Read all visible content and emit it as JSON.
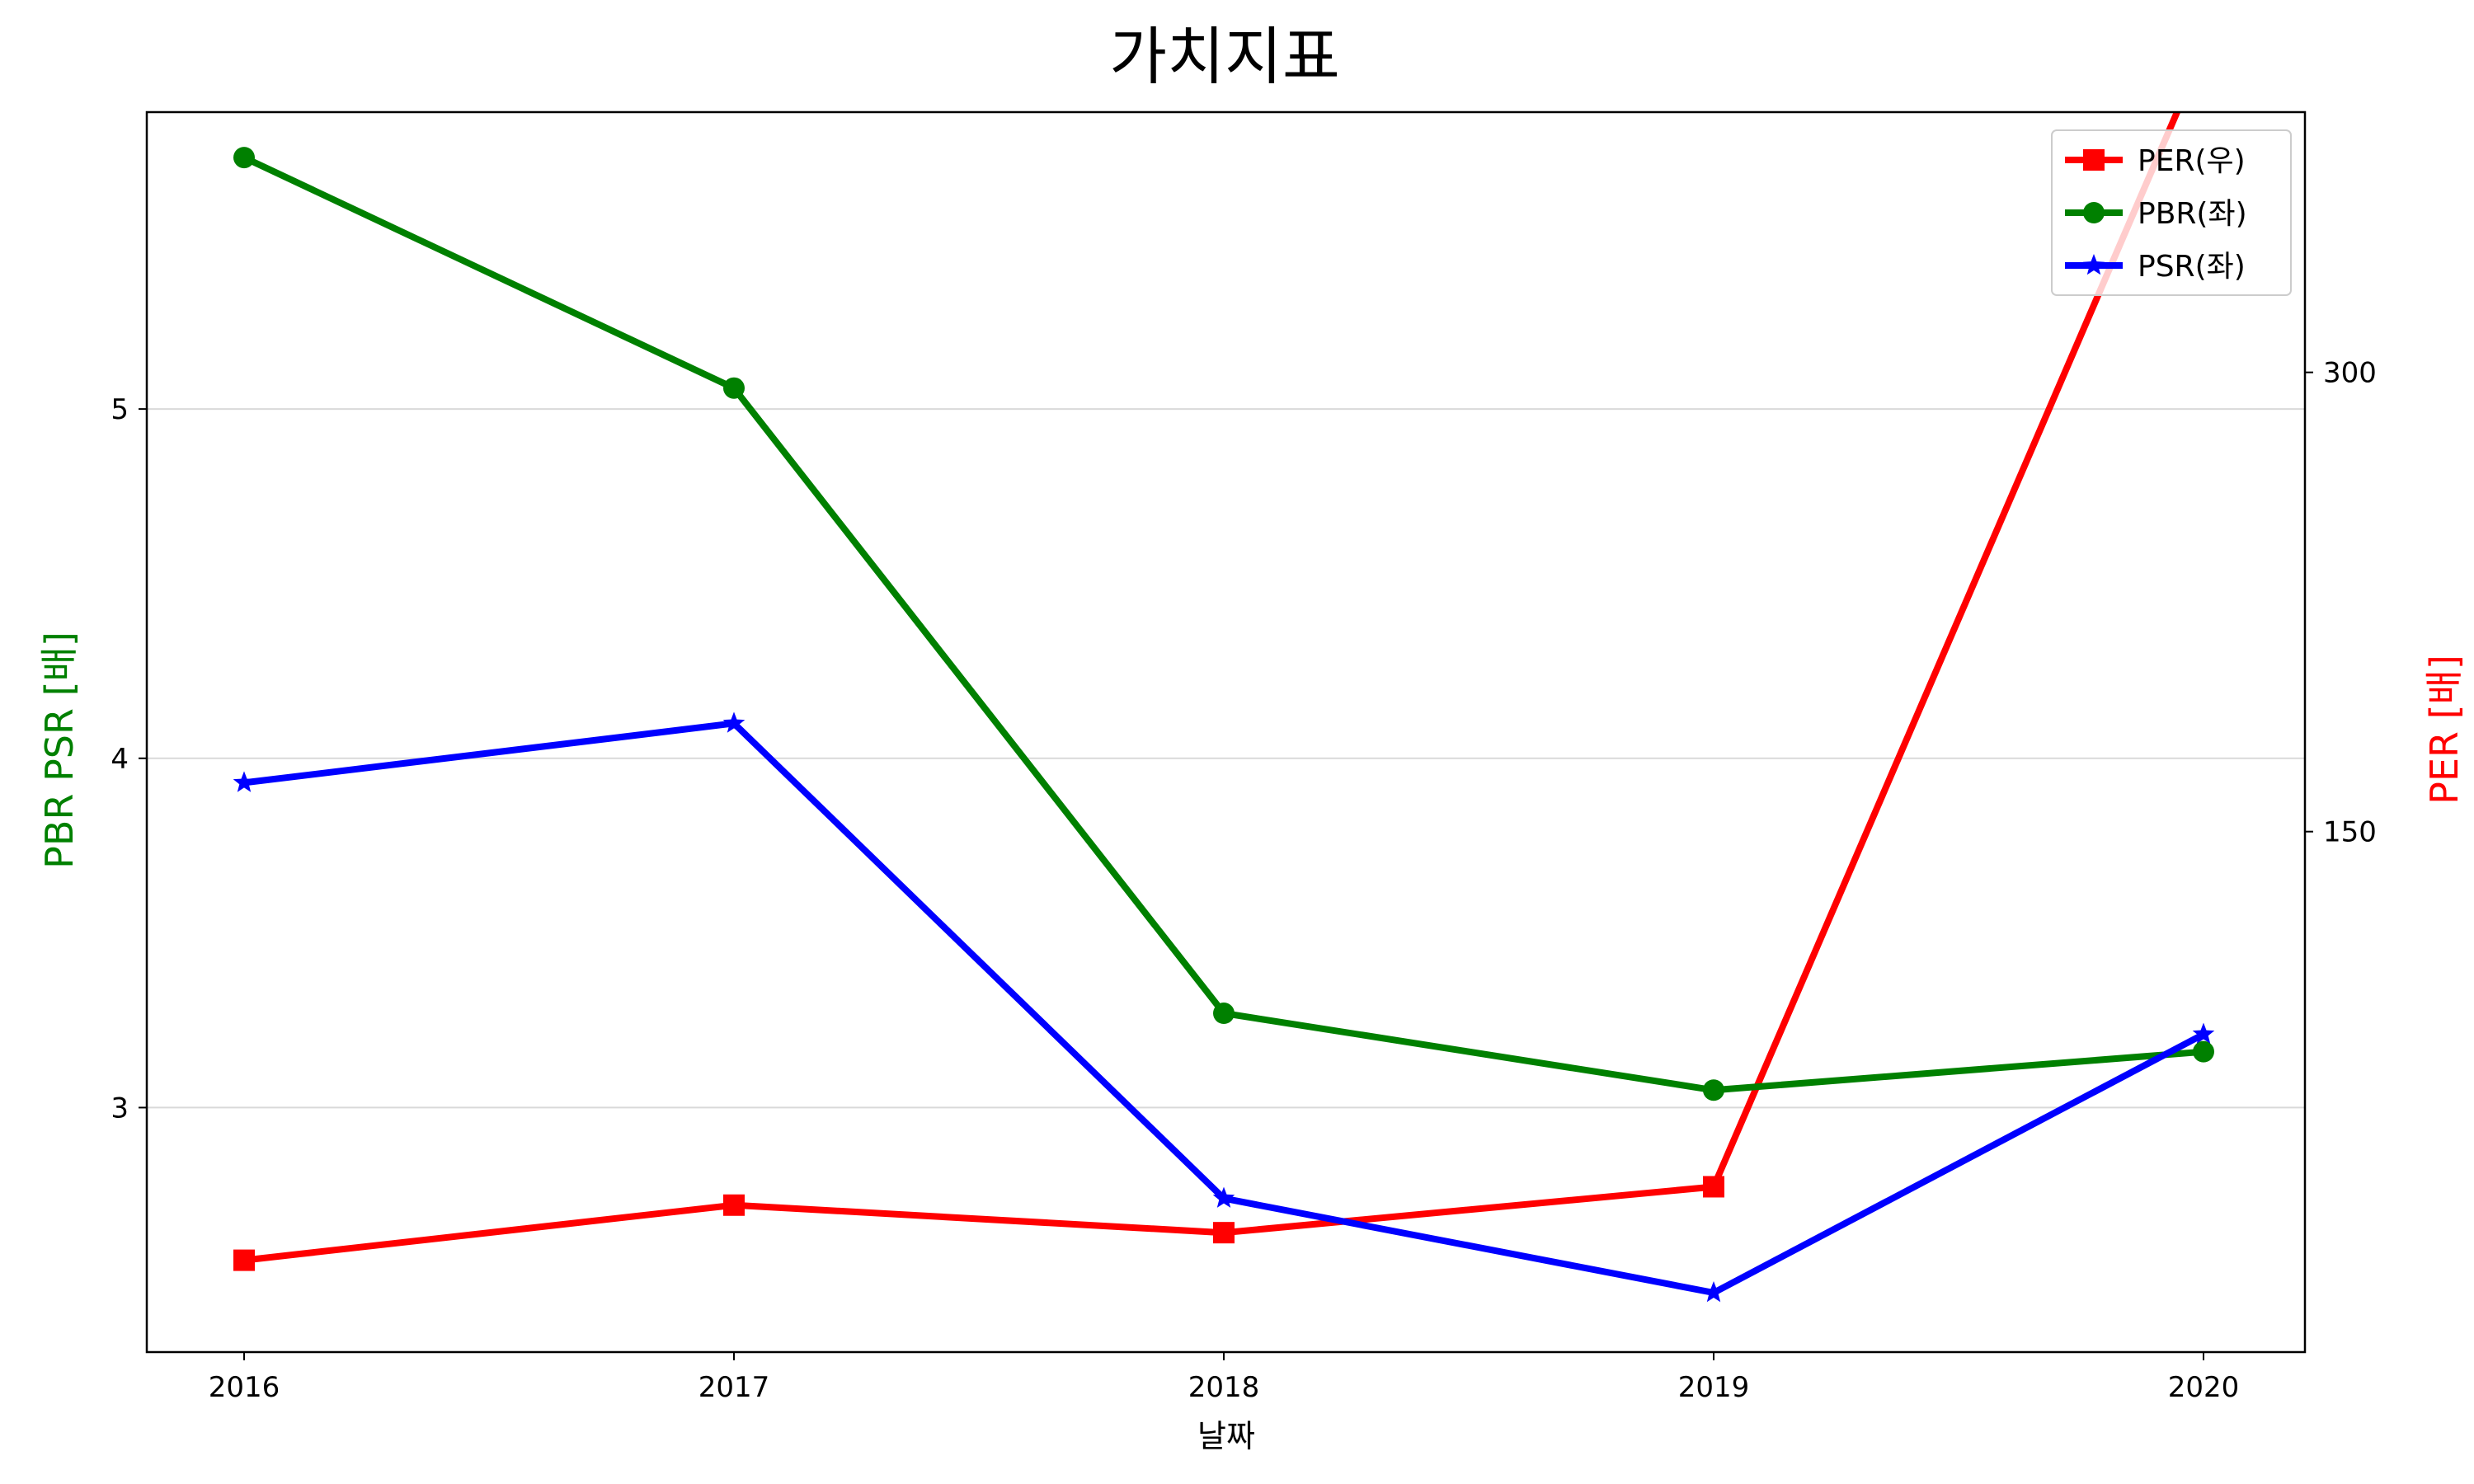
{
  "chart_data": {
    "type": "line",
    "title": "가치지표",
    "xlabel": "날짜",
    "ylabel_left": "PBR PSR [배]",
    "ylabel_right": "PER [배]",
    "ylabel_left_color": "#008000",
    "ylabel_right_color": "#ff0000",
    "categories": [
      "2016",
      "2017",
      "2018",
      "2019",
      "2020"
    ],
    "y_left": {
      "ylim": [
        2.3,
        5.85
      ],
      "ticks": [
        3,
        4,
        5
      ],
      "tick_labels": [
        "3",
        "4",
        "5"
      ],
      "grid": true
    },
    "y_right": {
      "ylim": [
        -20,
        385
      ],
      "ticks": [
        150,
        300
      ],
      "tick_labels": [
        "150",
        "300"
      ],
      "grid": false
    },
    "series": [
      {
        "name": "PER(우)",
        "axis": "right",
        "color": "#ff0000",
        "marker": "square",
        "values": [
          10,
          28,
          19,
          34,
          405
        ]
      },
      {
        "name": "PBR(좌)",
        "axis": "left",
        "color": "#008000",
        "marker": "circle",
        "values": [
          5.72,
          5.06,
          3.27,
          3.05,
          3.16
        ]
      },
      {
        "name": "PSR(좌)",
        "axis": "left",
        "color": "#0000ff",
        "marker": "star",
        "values": [
          3.93,
          4.1,
          2.74,
          2.47,
          3.21
        ]
      }
    ],
    "legend_position": "top-right"
  }
}
